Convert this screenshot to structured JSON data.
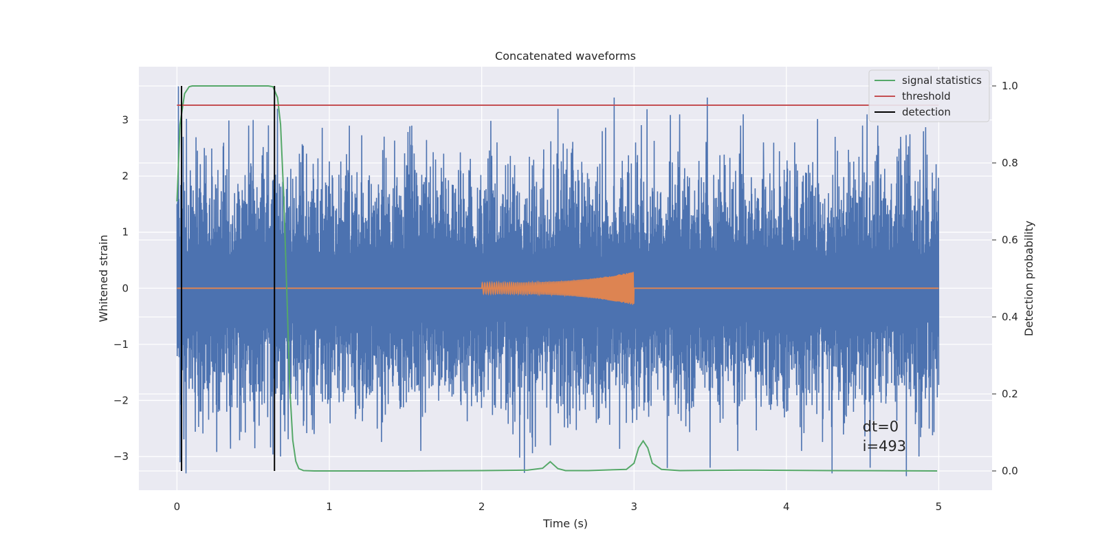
{
  "chart_data": {
    "type": "line",
    "title": "Concatenated waveforms",
    "xlabel": "Time (s)",
    "ylabel": "Whitened strain",
    "y2label": "Detection probability",
    "xlim": [
      -0.25,
      5.35
    ],
    "ylim": [
      -3.6,
      3.95
    ],
    "y2lim": [
      -0.05,
      1.05
    ],
    "xticks": [
      0,
      1,
      2,
      3,
      4,
      5
    ],
    "yticks": [
      -3,
      -2,
      -1,
      0,
      1,
      2,
      3
    ],
    "y2ticks": [
      0.0,
      0.2,
      0.4,
      0.6,
      0.8,
      1.0
    ],
    "grid": true,
    "legend_position": "top-right",
    "series": [
      {
        "name": "",
        "axis": "left",
        "color": "#4c72b0",
        "kind": "noise",
        "x_range": [
          0,
          5
        ],
        "typical_amplitude": 1.7,
        "peaks": [
          [
            0.01,
            3.6
          ],
          [
            0.02,
            -3.1
          ],
          [
            0.04,
            2.7
          ],
          [
            0.06,
            -3.3
          ],
          [
            0.18,
            2.5
          ],
          [
            0.35,
            -2.4
          ],
          [
            0.47,
            2.9
          ],
          [
            0.5,
            3.0
          ],
          [
            0.66,
            3.2
          ],
          [
            0.68,
            -3.0
          ],
          [
            0.85,
            2.4
          ],
          [
            0.9,
            -2.6
          ],
          [
            1.6,
            -2.9
          ],
          [
            1.75,
            2.4
          ],
          [
            2.1,
            2.6
          ],
          [
            2.45,
            -2.8
          ],
          [
            2.5,
            3.2
          ],
          [
            2.87,
            3.4
          ],
          [
            2.95,
            -2.4
          ],
          [
            3.3,
            3.1
          ],
          [
            3.48,
            3.4
          ],
          [
            3.5,
            -3.2
          ],
          [
            3.7,
            2.9
          ],
          [
            3.85,
            2.6
          ],
          [
            4.1,
            -2.9
          ],
          [
            4.3,
            -3.3
          ],
          [
            4.32,
            2.7
          ],
          [
            4.5,
            2.9
          ],
          [
            4.53,
            3.1
          ],
          [
            4.55,
            -3.2
          ],
          [
            4.6,
            2.9
          ],
          [
            4.75,
            2.7
          ],
          [
            4.87,
            -3.0
          ],
          [
            4.9,
            2.8
          ]
        ]
      },
      {
        "name": "",
        "axis": "left",
        "color": "#dd8452",
        "kind": "chirp",
        "x_range": [
          2.0,
          3.0
        ],
        "amplitude_start": 0.1,
        "amplitude_end": 0.3
      },
      {
        "name": "signal statistics",
        "axis": "right",
        "color": "#55a868",
        "x": [
          0,
          0.02,
          0.05,
          0.08,
          0.1,
          0.2,
          0.4,
          0.6,
          0.63,
          0.66,
          0.68,
          0.7,
          0.72,
          0.74,
          0.76,
          0.78,
          0.8,
          0.83,
          0.9,
          1.5,
          2.0,
          2.3,
          2.4,
          2.45,
          2.5,
          2.55,
          2.7,
          2.95,
          3.0,
          3.03,
          3.06,
          3.09,
          3.12,
          3.18,
          3.3,
          3.7,
          3.8,
          4.3,
          4.99
        ],
        "y": [
          0.7,
          0.9,
          0.98,
          0.998,
          1.0,
          1.0,
          1.0,
          1.0,
          0.998,
          0.97,
          0.9,
          0.72,
          0.48,
          0.22,
          0.08,
          0.025,
          0.006,
          0.001,
          0.0,
          0.0,
          0.001,
          0.002,
          0.007,
          0.024,
          0.006,
          0.001,
          0.001,
          0.004,
          0.02,
          0.06,
          0.078,
          0.06,
          0.02,
          0.004,
          0.001,
          0.002,
          0.002,
          0.001,
          0.0
        ]
      },
      {
        "name": "threshold",
        "axis": "right",
        "color": "#c44e52",
        "x": [
          0,
          5
        ],
        "y": [
          0.95,
          0.95
        ]
      },
      {
        "name": "detection",
        "axis": "right",
        "color": "#000000",
        "kind": "vlines",
        "x": [
          0.03,
          0.64
        ],
        "y_range": [
          0.0,
          1.0
        ]
      }
    ],
    "annotations": [
      "dt=0",
      "i=493"
    ]
  }
}
